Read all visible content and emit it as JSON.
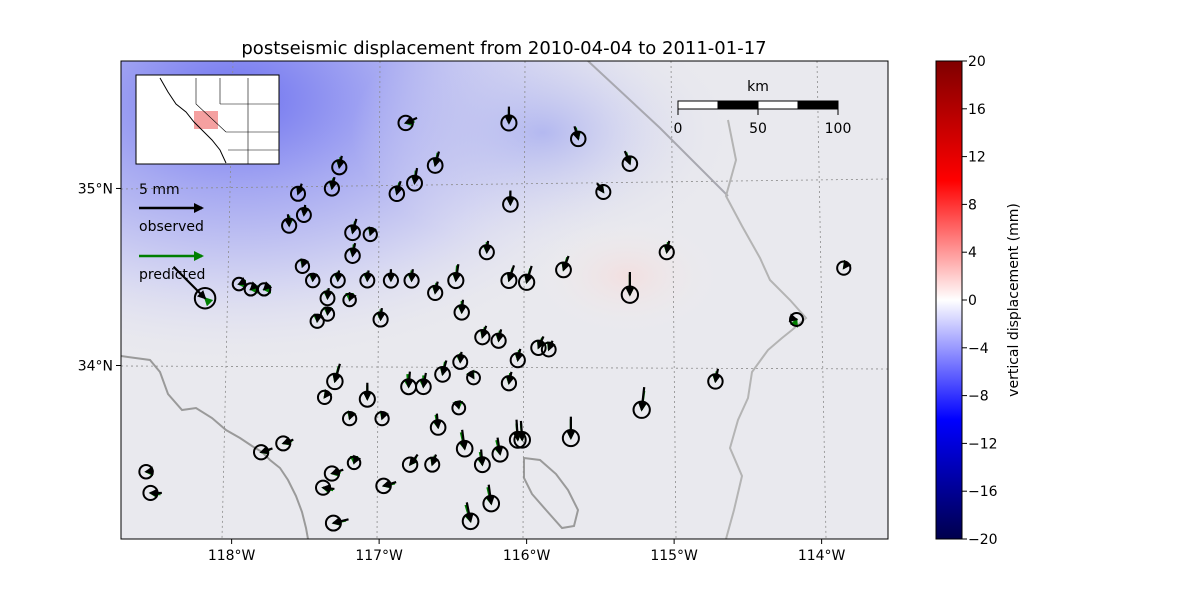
{
  "chart_data": {
    "type": "map-vector-field",
    "title": "postseismic displacement from 2010-04-04 to 2011-01-17",
    "x_ticks": [
      "118°W",
      "117°W",
      "116°W",
      "115°W",
      "114°W"
    ],
    "x_tick_values": [
      -118,
      -117,
      -116,
      -115,
      -114
    ],
    "y_ticks": [
      "35°N",
      "34°N"
    ],
    "y_tick_values": [
      35,
      34
    ],
    "lon_range": [
      -118.75,
      -113.55
    ],
    "lat_range": [
      33.02,
      35.72
    ],
    "legend": {
      "scale_label": "5 mm",
      "scale_mm": 5,
      "observed_label": "observed",
      "predicted_label": "predicted",
      "observed_color": "#000000",
      "predicted_color": "#007f00"
    },
    "scalebar": {
      "label": "km",
      "ticks": [
        "0",
        "50",
        "100"
      ]
    },
    "colorbar": {
      "label": "vertical displacement (mm)",
      "vmin": -20,
      "vmax": 20,
      "ticks": [
        "20",
        "16",
        "12",
        "8",
        "4",
        "0",
        "−4",
        "−8",
        "−12",
        "−16",
        "−20"
      ],
      "colormap": "seismic"
    },
    "stations": [
      {
        "lon": -118.18,
        "lat": 34.38,
        "obs_de": -2.5,
        "obs_dn": 2.5,
        "pred_de": 0.3,
        "pred_dn": -0.3
      },
      {
        "lon": -117.55,
        "lat": 34.97,
        "obs_de": 0.3,
        "obs_dn": 0.8,
        "pred_de": 0.2,
        "pred_dn": 0.6
      },
      {
        "lon": -117.61,
        "lat": 34.79,
        "obs_de": -0.1,
        "obs_dn": 0.9,
        "pred_de": 0.0,
        "pred_dn": 0.8
      },
      {
        "lon": -117.51,
        "lat": 34.85,
        "obs_de": 0.1,
        "obs_dn": 0.8,
        "pred_de": 0.1,
        "pred_dn": 0.7
      },
      {
        "lon": -117.27,
        "lat": 35.12,
        "obs_de": 0.2,
        "obs_dn": 0.9,
        "pred_de": 0.1,
        "pred_dn": 0.8
      },
      {
        "lon": -117.32,
        "lat": 35.0,
        "obs_de": 0.2,
        "obs_dn": 0.9,
        "pred_de": 0.1,
        "pred_dn": 0.8
      },
      {
        "lon": -117.18,
        "lat": 34.75,
        "obs_de": 0.3,
        "obs_dn": 1.1,
        "pred_de": 0.2,
        "pred_dn": 0.9
      },
      {
        "lon": -116.82,
        "lat": 35.37,
        "obs_de": 0.9,
        "obs_dn": 0.4,
        "pred_de": 0.7,
        "pred_dn": 0.1
      },
      {
        "lon": -116.62,
        "lat": 35.13,
        "obs_de": 0.3,
        "obs_dn": 1.1,
        "pred_de": 0.2,
        "pred_dn": 1.0
      },
      {
        "lon": -116.76,
        "lat": 35.03,
        "obs_de": 0.2,
        "obs_dn": 1.2,
        "pred_de": 0.1,
        "pred_dn": 1.0
      },
      {
        "lon": -116.88,
        "lat": 34.97,
        "obs_de": 0.3,
        "obs_dn": 1.0,
        "pred_de": 0.2,
        "pred_dn": 0.9
      },
      {
        "lon": -116.12,
        "lat": 35.37,
        "obs_de": 0.0,
        "obs_dn": 1.3,
        "pred_de": 0.0,
        "pred_dn": 1.1
      },
      {
        "lon": -116.11,
        "lat": 34.91,
        "obs_de": 0.0,
        "obs_dn": 1.1,
        "pred_de": 0.0,
        "pred_dn": 1.0
      },
      {
        "lon": -115.65,
        "lat": 35.28,
        "obs_de": -0.3,
        "obs_dn": 1.0,
        "pred_de": -0.2,
        "pred_dn": 0.9
      },
      {
        "lon": -115.3,
        "lat": 35.14,
        "obs_de": -0.4,
        "obs_dn": 1.0,
        "pred_de": -0.3,
        "pred_dn": 0.9
      },
      {
        "lon": -115.48,
        "lat": 34.98,
        "obs_de": -0.5,
        "obs_dn": 0.7,
        "pred_de": -0.4,
        "pred_dn": 0.6
      },
      {
        "lon": -117.52,
        "lat": 34.56,
        "obs_de": 0.2,
        "obs_dn": 0.5,
        "pred_de": 0.1,
        "pred_dn": 0.4
      },
      {
        "lon": -117.45,
        "lat": 34.48,
        "obs_de": 0.1,
        "obs_dn": 0.6,
        "pred_de": 0.0,
        "pred_dn": 0.5
      },
      {
        "lon": -117.35,
        "lat": 34.38,
        "obs_de": 0.1,
        "obs_dn": 0.8,
        "pred_de": 0.0,
        "pred_dn": 0.7
      },
      {
        "lon": -117.18,
        "lat": 34.62,
        "obs_de": 0.2,
        "obs_dn": 1.0,
        "pred_de": 0.1,
        "pred_dn": 0.9
      },
      {
        "lon": -117.28,
        "lat": 34.48,
        "obs_de": 0.1,
        "obs_dn": 0.8,
        "pred_de": 0.0,
        "pred_dn": 0.7
      },
      {
        "lon": -117.08,
        "lat": 34.48,
        "obs_de": 0.1,
        "obs_dn": 0.8,
        "pred_de": 0.0,
        "pred_dn": 0.7
      },
      {
        "lon": -116.92,
        "lat": 34.48,
        "obs_de": 0.0,
        "obs_dn": 0.9,
        "pred_de": 0.0,
        "pred_dn": 0.8
      },
      {
        "lon": -116.78,
        "lat": 34.48,
        "obs_de": 0.1,
        "obs_dn": 0.9,
        "pred_de": 0.0,
        "pred_dn": 0.8
      },
      {
        "lon": -116.62,
        "lat": 34.41,
        "obs_de": 0.2,
        "obs_dn": 0.9,
        "pred_de": 0.1,
        "pred_dn": 0.8
      },
      {
        "lon": -116.48,
        "lat": 34.48,
        "obs_de": 0.2,
        "obs_dn": 1.3,
        "pred_de": 0.1,
        "pred_dn": 1.2
      },
      {
        "lon": -116.27,
        "lat": 34.64,
        "obs_de": 0.1,
        "obs_dn": 0.9,
        "pred_de": 0.0,
        "pred_dn": 0.8
      },
      {
        "lon": -116.12,
        "lat": 34.48,
        "obs_de": 0.4,
        "obs_dn": 1.2,
        "pred_de": 0.3,
        "pred_dn": 1.0
      },
      {
        "lon": -116.0,
        "lat": 34.47,
        "obs_de": 0.4,
        "obs_dn": 1.3,
        "pred_de": 0.3,
        "pred_dn": 1.1
      },
      {
        "lon": -115.75,
        "lat": 34.54,
        "obs_de": 0.4,
        "obs_dn": 1.1,
        "pred_de": 0.3,
        "pred_dn": 1.0
      },
      {
        "lon": -115.3,
        "lat": 34.4,
        "obs_de": 0.0,
        "obs_dn": 1.8,
        "pred_de": 0.0,
        "pred_dn": 1.6
      },
      {
        "lon": -115.05,
        "lat": 34.64,
        "obs_de": 0.2,
        "obs_dn": 0.9,
        "pred_de": 0.1,
        "pred_dn": 0.8
      },
      {
        "lon": -117.42,
        "lat": 34.25,
        "obs_de": 0.1,
        "obs_dn": 0.5,
        "pred_de": 0.0,
        "pred_dn": 0.4
      },
      {
        "lon": -117.35,
        "lat": 34.29,
        "obs_de": 0.1,
        "obs_dn": 0.5,
        "pred_de": 0.0,
        "pred_dn": 0.4
      },
      {
        "lon": -116.99,
        "lat": 34.26,
        "obs_de": 0.1,
        "obs_dn": 0.9,
        "pred_de": 0.0,
        "pred_dn": 0.8
      },
      {
        "lon": -116.44,
        "lat": 34.3,
        "obs_de": 0.1,
        "obs_dn": 1.0,
        "pred_de": 0.0,
        "pred_dn": 0.9
      },
      {
        "lon": -116.3,
        "lat": 34.16,
        "obs_de": 0.3,
        "obs_dn": 0.9,
        "pred_de": 0.2,
        "pred_dn": 0.8
      },
      {
        "lon": -116.19,
        "lat": 34.14,
        "obs_de": 0.2,
        "obs_dn": 0.9,
        "pred_de": 0.1,
        "pred_dn": 0.8
      },
      {
        "lon": -116.06,
        "lat": 34.03,
        "obs_de": 0.2,
        "obs_dn": 0.9,
        "pred_de": 0.1,
        "pred_dn": 0.8
      },
      {
        "lon": -115.92,
        "lat": 34.1,
        "obs_de": 0.4,
        "obs_dn": 0.9,
        "pred_de": 0.3,
        "pred_dn": 0.8
      },
      {
        "lon": -115.85,
        "lat": 34.09,
        "obs_de": 0.3,
        "obs_dn": 0.7,
        "pred_de": 0.2,
        "pred_dn": 0.6
      },
      {
        "lon": -114.17,
        "lat": 34.26,
        "obs_de": -0.4,
        "obs_dn": 0.1,
        "pred_de": -0.2,
        "pred_dn": -0.5
      },
      {
        "lon": -113.85,
        "lat": 34.55,
        "obs_de": 0.3,
        "obs_dn": 0.4,
        "pred_de": 0.2,
        "pred_dn": 0.3
      },
      {
        "lon": -117.3,
        "lat": 33.91,
        "obs_de": 0.4,
        "obs_dn": 1.4,
        "pred_de": 0.3,
        "pred_dn": 1.2
      },
      {
        "lon": -117.37,
        "lat": 33.82,
        "obs_de": 0.3,
        "obs_dn": 0.4,
        "pred_de": 0.2,
        "pred_dn": 0.3
      },
      {
        "lon": -117.08,
        "lat": 33.81,
        "obs_de": 0.0,
        "obs_dn": 1.3,
        "pred_de": 0.0,
        "pred_dn": 1.1
      },
      {
        "lon": -117.2,
        "lat": 33.7,
        "obs_de": 0.2,
        "obs_dn": 0.5,
        "pred_de": 0.1,
        "pred_dn": 0.4
      },
      {
        "lon": -116.98,
        "lat": 33.7,
        "obs_de": 0.2,
        "obs_dn": 0.5,
        "pred_de": 0.1,
        "pred_dn": 0.4
      },
      {
        "lon": -116.8,
        "lat": 33.88,
        "obs_de": 0.1,
        "obs_dn": 1.2,
        "pred_de": -0.1,
        "pred_dn": 1.0
      },
      {
        "lon": -116.7,
        "lat": 33.88,
        "obs_de": 0.2,
        "obs_dn": 1.1,
        "pred_de": 0.0,
        "pred_dn": 0.9
      },
      {
        "lon": -116.57,
        "lat": 33.95,
        "obs_de": 0.3,
        "obs_dn": 1.1,
        "pred_de": 0.2,
        "pred_dn": 1.0
      },
      {
        "lon": -116.45,
        "lat": 34.02,
        "obs_de": 0.1,
        "obs_dn": 0.8,
        "pred_de": 0.0,
        "pred_dn": 0.7
      },
      {
        "lon": -116.36,
        "lat": 33.93,
        "obs_de": -0.2,
        "obs_dn": 0.3,
        "pred_de": -0.1,
        "pred_dn": 0.2
      },
      {
        "lon": -116.12,
        "lat": 33.9,
        "obs_de": 0.2,
        "obs_dn": 0.9,
        "pred_de": 0.1,
        "pred_dn": 0.8
      },
      {
        "lon": -116.46,
        "lat": 33.76,
        "obs_de": -0.1,
        "obs_dn": 0.3,
        "pred_de": 0.0,
        "pred_dn": 0.2
      },
      {
        "lon": -116.6,
        "lat": 33.65,
        "obs_de": -0.1,
        "obs_dn": 1.1,
        "pred_de": -0.2,
        "pred_dn": 1.0
      },
      {
        "lon": -116.42,
        "lat": 33.53,
        "obs_de": -0.2,
        "obs_dn": 1.5,
        "pred_de": -0.3,
        "pred_dn": 1.3
      },
      {
        "lon": -116.06,
        "lat": 33.58,
        "obs_de": -0.1,
        "obs_dn": 1.6,
        "pred_de": -0.1,
        "pred_dn": 1.3
      },
      {
        "lon": -116.03,
        "lat": 33.58,
        "obs_de": -0.1,
        "obs_dn": 1.5,
        "pred_de": -0.1,
        "pred_dn": 1.3
      },
      {
        "lon": -116.18,
        "lat": 33.5,
        "obs_de": -0.2,
        "obs_dn": 1.3,
        "pred_de": -0.3,
        "pred_dn": 1.1
      },
      {
        "lon": -116.3,
        "lat": 33.44,
        "obs_de": -0.1,
        "obs_dn": 1.2,
        "pred_de": -0.2,
        "pred_dn": 1.0
      },
      {
        "lon": -115.7,
        "lat": 33.59,
        "obs_de": 0.0,
        "obs_dn": 1.7,
        "pred_de": 0.0,
        "pred_dn": 1.5
      },
      {
        "lon": -115.22,
        "lat": 33.75,
        "obs_de": 0.2,
        "obs_dn": 1.8,
        "pred_de": 0.2,
        "pred_dn": 1.5
      },
      {
        "lon": -114.72,
        "lat": 33.91,
        "obs_de": 0.2,
        "obs_dn": 1.0,
        "pred_de": 0.1,
        "pred_dn": 0.8
      },
      {
        "lon": -117.8,
        "lat": 33.51,
        "obs_de": 0.9,
        "obs_dn": 0.3,
        "pred_de": 0.7,
        "pred_dn": 0.2
      },
      {
        "lon": -117.65,
        "lat": 33.56,
        "obs_de": 0.8,
        "obs_dn": 0.3,
        "pred_de": 0.7,
        "pred_dn": 0.2
      },
      {
        "lon": -117.32,
        "lat": 33.39,
        "obs_de": 0.9,
        "obs_dn": 0.3,
        "pred_de": 0.7,
        "pred_dn": 0.1
      },
      {
        "lon": -117.17,
        "lat": 33.45,
        "obs_de": 0.1,
        "obs_dn": 0.2,
        "pred_de": 0.0,
        "pred_dn": 0.1
      },
      {
        "lon": -117.38,
        "lat": 33.31,
        "obs_de": 0.9,
        "obs_dn": -0.1,
        "pred_de": 0.8,
        "pred_dn": -0.2
      },
      {
        "lon": -117.31,
        "lat": 33.11,
        "obs_de": 1.2,
        "obs_dn": 0.3,
        "pred_de": 1.0,
        "pred_dn": 0.2
      },
      {
        "lon": -116.97,
        "lat": 33.32,
        "obs_de": 1.0,
        "obs_dn": 0.3,
        "pred_de": 0.9,
        "pred_dn": 0.2
      },
      {
        "lon": -116.79,
        "lat": 33.44,
        "obs_de": 0.6,
        "obs_dn": 0.8,
        "pred_de": 0.5,
        "pred_dn": 0.6
      },
      {
        "lon": -116.64,
        "lat": 33.44,
        "obs_de": 0.3,
        "obs_dn": 0.8,
        "pred_de": 0.2,
        "pred_dn": 0.7
      },
      {
        "lon": -116.24,
        "lat": 33.22,
        "obs_de": -0.2,
        "obs_dn": 1.5,
        "pred_de": -0.3,
        "pred_dn": 1.3
      },
      {
        "lon": -116.38,
        "lat": 33.12,
        "obs_de": -0.3,
        "obs_dn": 1.5,
        "pred_de": -0.4,
        "pred_dn": 1.3
      },
      {
        "lon": -118.58,
        "lat": 33.4,
        "obs_de": 0.6,
        "obs_dn": 0.1,
        "pred_de": 0.5,
        "pred_dn": 0.0
      },
      {
        "lon": -118.55,
        "lat": 33.28,
        "obs_de": 0.9,
        "obs_dn": 0.0,
        "pred_de": 0.8,
        "pred_dn": -0.1
      },
      {
        "lon": -117.95,
        "lat": 34.46,
        "obs_de": 0.2,
        "obs_dn": 0.1,
        "pred_de": 0.1,
        "pred_dn": 0.0
      },
      {
        "lon": -117.87,
        "lat": 34.43,
        "obs_de": 0.1,
        "obs_dn": 0.1,
        "pred_de": 0.0,
        "pred_dn": 0.0
      },
      {
        "lon": -117.78,
        "lat": 34.43,
        "obs_de": 0.1,
        "obs_dn": 0.1,
        "pred_de": 0.0,
        "pred_dn": 0.0
      },
      {
        "lon": -117.2,
        "lat": 34.37,
        "obs_de": 0.1,
        "obs_dn": 0.2,
        "pred_de": 0.0,
        "pred_dn": 0.1
      },
      {
        "lon": -117.06,
        "lat": 34.74,
        "obs_de": 0.2,
        "obs_dn": 0.5,
        "pred_de": 0.1,
        "pred_dn": 0.4
      }
    ]
  }
}
